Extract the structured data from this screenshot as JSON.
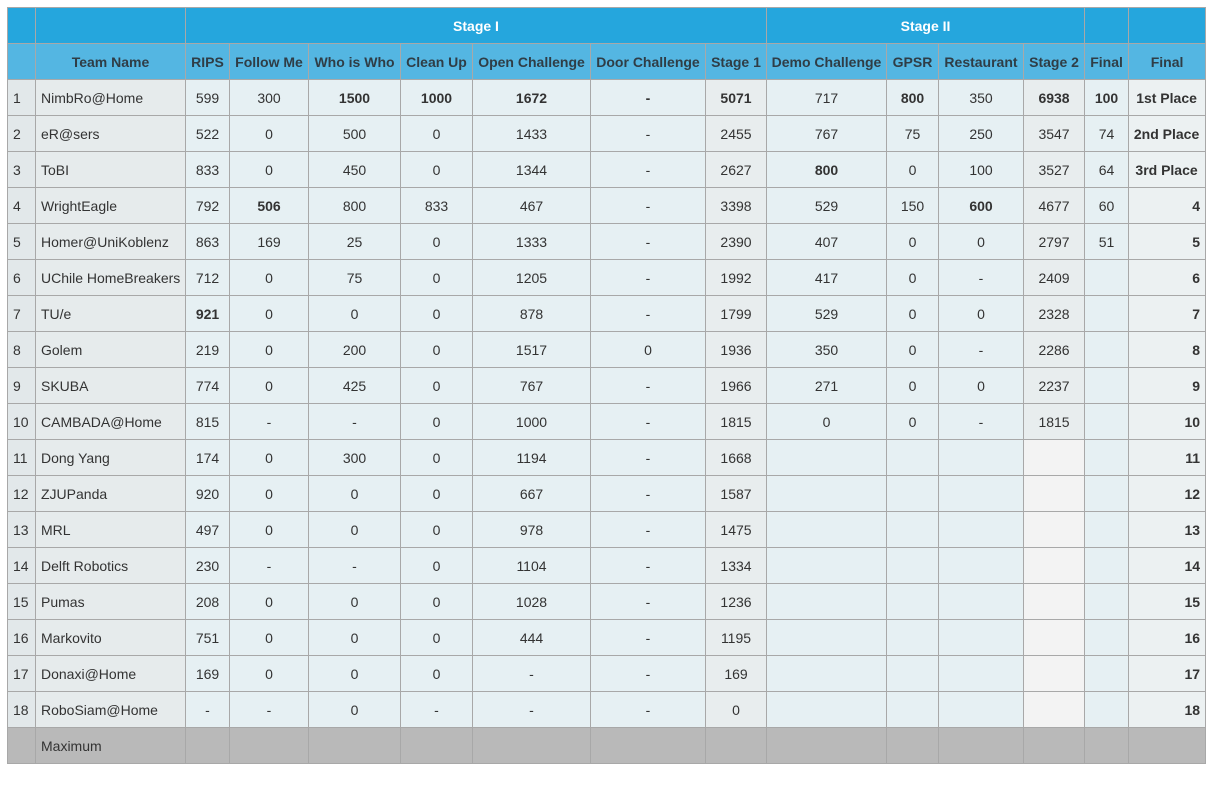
{
  "header": {
    "stage1": "Stage I",
    "stage2": "Stage II",
    "columns": [
      "Team Name",
      "RIPS",
      "Follow Me",
      "Who is Who",
      "Clean Up",
      "Open Challenge",
      "Door Challenge",
      "Stage 1",
      "Demo Challenge",
      "GPSR",
      "Restaurant",
      "Stage 2",
      "Final",
      "Final"
    ]
  },
  "rows": [
    {
      "rank": "1",
      "team": "NimbRo@Home",
      "rips": "599",
      "follow": "300",
      "who": "1500",
      "clean": "1000",
      "open": "1672",
      "door": "-",
      "s1": "5071",
      "demo": "717",
      "gpsr": "800",
      "rest": "350",
      "s2": "6938",
      "final": "100",
      "place": "1st Place"
    },
    {
      "rank": "2",
      "team": "eR@sers",
      "rips": "522",
      "follow": "0",
      "who": "500",
      "clean": "0",
      "open": "1433",
      "door": "-",
      "s1": "2455",
      "demo": "767",
      "gpsr": "75",
      "rest": "250",
      "s2": "3547",
      "final": "74",
      "place": "2nd Place"
    },
    {
      "rank": "3",
      "team": "ToBI",
      "rips": "833",
      "follow": "0",
      "who": "450",
      "clean": "0",
      "open": "1344",
      "door": "-",
      "s1": "2627",
      "demo": "800",
      "gpsr": "0",
      "rest": "100",
      "s2": "3527",
      "final": "64",
      "place": "3rd Place"
    },
    {
      "rank": "4",
      "team": "WrightEagle",
      "rips": "792",
      "follow": "506",
      "who": "800",
      "clean": "833",
      "open": "467",
      "door": "-",
      "s1": "3398",
      "demo": "529",
      "gpsr": "150",
      "rest": "600",
      "s2": "4677",
      "final": "60",
      "place": "4"
    },
    {
      "rank": "5",
      "team": "Homer@UniKoblenz",
      "rips": "863",
      "follow": "169",
      "who": "25",
      "clean": "0",
      "open": "1333",
      "door": "-",
      "s1": "2390",
      "demo": "407",
      "gpsr": "0",
      "rest": "0",
      "s2": "2797",
      "final": "51",
      "place": "5"
    },
    {
      "rank": "6",
      "team": "UChile HomeBreakers",
      "rips": "712",
      "follow": "0",
      "who": "75",
      "clean": "0",
      "open": "1205",
      "door": "-",
      "s1": "1992",
      "demo": "417",
      "gpsr": "0",
      "rest": "-",
      "s2": "2409",
      "final": "",
      "place": "6"
    },
    {
      "rank": "7",
      "team": "TU/e",
      "rips": "921",
      "follow": "0",
      "who": "0",
      "clean": "0",
      "open": "878",
      "door": "-",
      "s1": "1799",
      "demo": "529",
      "gpsr": "0",
      "rest": "0",
      "s2": "2328",
      "final": "",
      "place": "7"
    },
    {
      "rank": "8",
      "team": "Golem",
      "rips": "219",
      "follow": "0",
      "who": "200",
      "clean": "0",
      "open": "1517",
      "door": "0",
      "s1": "1936",
      "demo": "350",
      "gpsr": "0",
      "rest": "-",
      "s2": "2286",
      "final": "",
      "place": "8"
    },
    {
      "rank": "9",
      "team": "SKUBA",
      "rips": "774",
      "follow": "0",
      "who": "425",
      "clean": "0",
      "open": "767",
      "door": "-",
      "s1": "1966",
      "demo": "271",
      "gpsr": "0",
      "rest": "0",
      "s2": "2237",
      "final": "",
      "place": "9"
    },
    {
      "rank": "10",
      "team": "CAMBADA@Home",
      "rips": "815",
      "follow": "-",
      "who": "-",
      "clean": "0",
      "open": "1000",
      "door": "-",
      "s1": "1815",
      "demo": "0",
      "gpsr": "0",
      "rest": "-",
      "s2": "1815",
      "final": "",
      "place": "10"
    },
    {
      "rank": "11",
      "team": "Dong Yang",
      "rips": "174",
      "follow": "0",
      "who": "300",
      "clean": "0",
      "open": "1194",
      "door": "-",
      "s1": "1668",
      "demo": "",
      "gpsr": "",
      "rest": "",
      "s2": "",
      "final": "",
      "place": "11"
    },
    {
      "rank": "12",
      "team": "ZJUPanda",
      "rips": "920",
      "follow": "0",
      "who": "0",
      "clean": "0",
      "open": "667",
      "door": "-",
      "s1": "1587",
      "demo": "",
      "gpsr": "",
      "rest": "",
      "s2": "",
      "final": "",
      "place": "12"
    },
    {
      "rank": "13",
      "team": "MRL",
      "rips": "497",
      "follow": "0",
      "who": "0",
      "clean": "0",
      "open": "978",
      "door": "-",
      "s1": "1475",
      "demo": "",
      "gpsr": "",
      "rest": "",
      "s2": "",
      "final": "",
      "place": "13"
    },
    {
      "rank": "14",
      "team": "Delft Robotics",
      "rips": "230",
      "follow": "-",
      "who": "-",
      "clean": "0",
      "open": "1104",
      "door": "-",
      "s1": "1334",
      "demo": "",
      "gpsr": "",
      "rest": "",
      "s2": "",
      "final": "",
      "place": "14"
    },
    {
      "rank": "15",
      "team": "Pumas",
      "rips": "208",
      "follow": "0",
      "who": "0",
      "clean": "0",
      "open": "1028",
      "door": "-",
      "s1": "1236",
      "demo": "",
      "gpsr": "",
      "rest": "",
      "s2": "",
      "final": "",
      "place": "15"
    },
    {
      "rank": "16",
      "team": "Markovito",
      "rips": "751",
      "follow": "0",
      "who": "0",
      "clean": "0",
      "open": "444",
      "door": "-",
      "s1": "1195",
      "demo": "",
      "gpsr": "",
      "rest": "",
      "s2": "",
      "final": "",
      "place": "16"
    },
    {
      "rank": "17",
      "team": "Donaxi@Home",
      "rips": "169",
      "follow": "0",
      "who": "0",
      "clean": "0",
      "open": "-",
      "door": "-",
      "s1": "169",
      "demo": "",
      "gpsr": "",
      "rest": "",
      "s2": "",
      "final": "",
      "place": "17"
    },
    {
      "rank": "18",
      "team": "RoboSiam@Home",
      "rips": "-",
      "follow": "-",
      "who": "0",
      "clean": "-",
      "open": "-",
      "door": "-",
      "s1": "0",
      "demo": "",
      "gpsr": "",
      "rest": "",
      "s2": "",
      "final": "",
      "place": "18"
    }
  ],
  "max_label": "Maximum"
}
